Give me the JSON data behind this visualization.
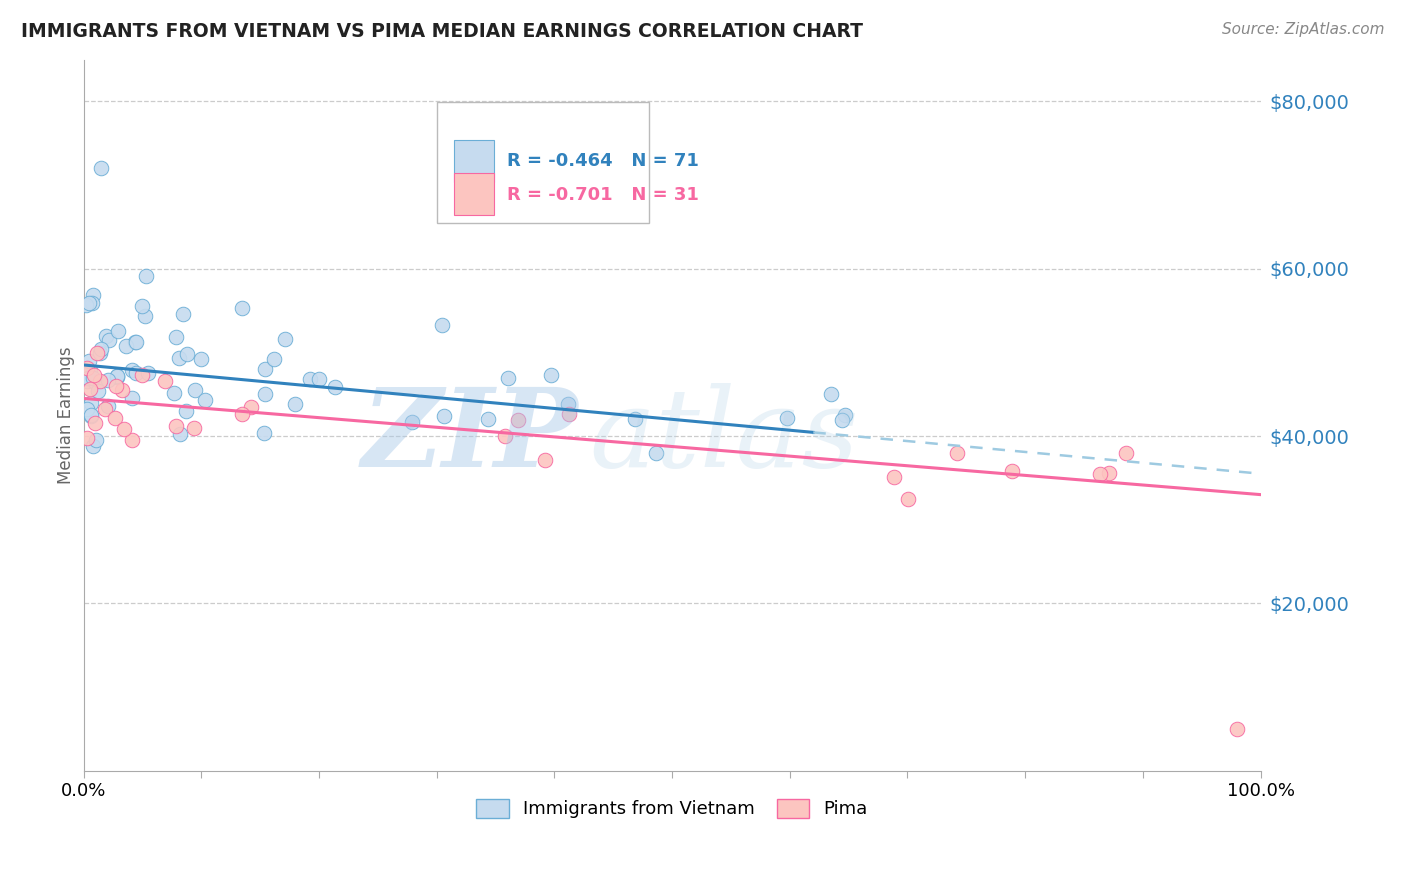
{
  "title": "IMMIGRANTS FROM VIETNAM VS PIMA MEDIAN EARNINGS CORRELATION CHART",
  "source": "Source: ZipAtlas.com",
  "ylabel": "Median Earnings",
  "ylabel_right_ticks": [
    20000,
    40000,
    60000,
    80000
  ],
  "ylabel_right_labels": [
    "$20,000",
    "$40,000",
    "$60,000",
    "$80,000"
  ],
  "legend_blue_r": "R = -0.464",
  "legend_blue_n": "N = 71",
  "legend_pink_r": "R = -0.701",
  "legend_pink_n": "N = 31",
  "legend_label_blue": "Immigrants from Vietnam",
  "legend_label_pink": "Pima",
  "blue_color": "#6baed6",
  "blue_fill": "#c6dbef",
  "pink_color": "#f768a1",
  "pink_fill": "#fcc5c0",
  "blue_line_color": "#3182bd",
  "pink_line_color": "#f768a1",
  "dashed_line_color": "#9ecae1",
  "background_color": "#ffffff",
  "grid_color": "#cccccc",
  "xmin": 0,
  "xmax": 100,
  "ymin": 0,
  "ymax": 85000,
  "blue_intercept": 48500,
  "blue_slope": -130,
  "blue_solid_end": 62,
  "pink_intercept": 44500,
  "pink_slope": -115,
  "watermark_zip_color": "#a8c8e8",
  "watermark_atlas_color": "#b8d4e8"
}
